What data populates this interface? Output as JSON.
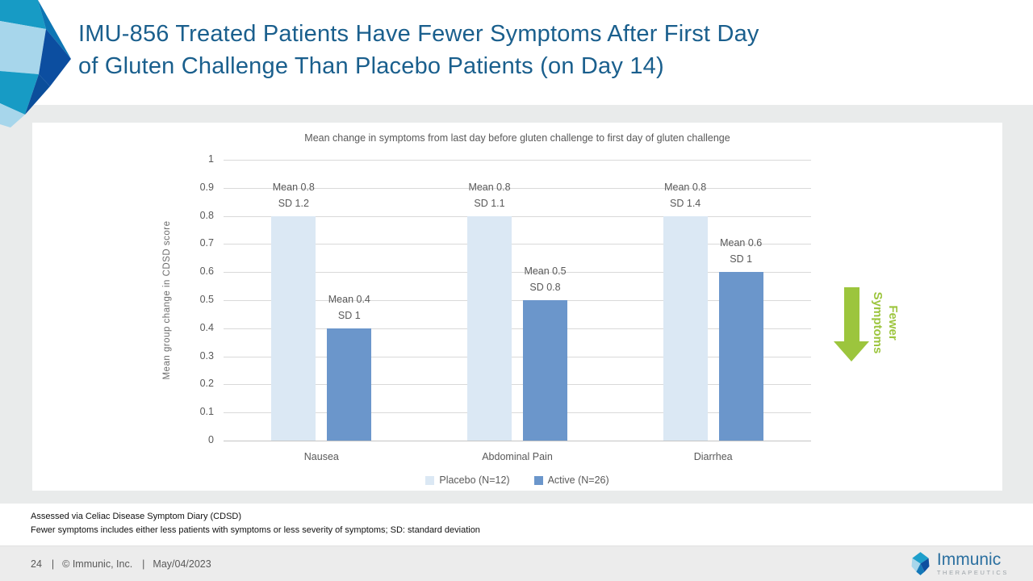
{
  "slide": {
    "title": "IMU-856 Treated Patients Have Fewer Symptoms After First Day of Gluten Challenge Than Placebo Patients (on Day 14)",
    "title_lines": [
      "IMU-856 Treated Patients Have Fewer Symptoms After First Day",
      "of Gluten Challenge Than Placebo Patients (on Day 14)"
    ],
    "title_color": "#1A5F8D"
  },
  "chart_data": {
    "type": "bar",
    "title": "Mean change in symptoms from last day before gluten challenge to first day of gluten challenge",
    "categories": [
      "Nausea",
      "Abdominal Pain",
      "Diarrhea"
    ],
    "series": [
      {
        "name": "Placebo (N=12)",
        "color": "#DBE8F4",
        "values": [
          0.8,
          0.8,
          0.8
        ],
        "sd": [
          1.2,
          1.1,
          1.4
        ]
      },
      {
        "name": "Active (N=26)",
        "color": "#6B96CB",
        "values": [
          0.4,
          0.5,
          0.6
        ],
        "sd": [
          1.0,
          0.8,
          1.0
        ]
      }
    ],
    "ylabel": "Mean group change in CDSD score",
    "xlabel": "",
    "ylim": [
      0,
      1
    ],
    "ytick_step": 0.1,
    "grid": true,
    "legend_position": "bottom",
    "data_label_mean_prefix": "Mean",
    "data_label_sd_prefix": "SD"
  },
  "annotation": {
    "direction": "down",
    "line1": "Fewer",
    "line2": "Symptoms",
    "color": "#9CC53D"
  },
  "footnotes": [
    "Assessed via Celiac Disease Symptom Diary (CDSD)",
    "Fewer symptoms includes either less patients with symptoms or less severity of symptoms; SD: standard deviation"
  ],
  "footer": {
    "page_number": "24",
    "separator": "|",
    "copyright": "© Immunic, Inc.",
    "date": "May/04/2023",
    "logo_name": "Immunic",
    "logo_subtext": "THERAPEUTICS"
  }
}
